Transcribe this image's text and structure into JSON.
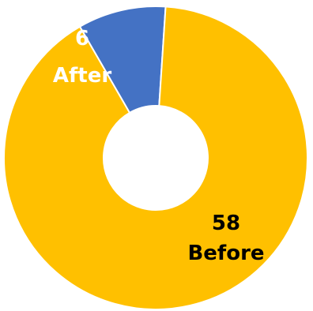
{
  "chart_data": {
    "type": "pie",
    "variant": "donut",
    "title": "",
    "series": [
      {
        "categories": [
          "After",
          "Before"
        ],
        "values": [
          6,
          58
        ],
        "value_labels": [
          "6",
          "58"
        ],
        "colors": [
          "#4472C4",
          "#FFC000"
        ],
        "label_colors": [
          "#FFFFFF",
          "#000000"
        ]
      }
    ],
    "start_angle_deg": -30,
    "direction": "clockwise",
    "legend": "none"
  }
}
